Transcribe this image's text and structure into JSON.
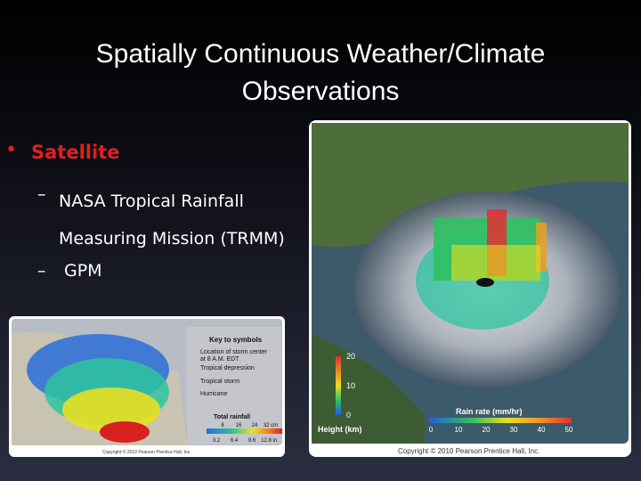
{
  "slide": {
    "title": "Spatially Continuous Weather/Climate Observations",
    "bullet": "Satellite",
    "sub_bullets": [
      "NASA Tropical  Rainfall Measuring Mission (TRMM)",
      "GPM"
    ],
    "left_image": {
      "key_title": "Key to symbols",
      "key_items": [
        "Location of storm center",
        "at 8 A.M. EDT",
        "Tropical depression",
        "Tropical storm",
        "Hurricane"
      ],
      "legend_title": "Total rainfall",
      "cm_labels": [
        "8",
        "16",
        "24",
        "32 cm"
      ],
      "in_labels": [
        "3.2",
        "6.4",
        "9.6",
        "12.8 in."
      ],
      "copyright": "Copyright © 2010 Pearson Prentice Hall, Inc."
    },
    "right_image": {
      "height_labels": [
        "20",
        "10",
        "0"
      ],
      "height_title": "Height (km)",
      "rain_title": "Rain rate (mm/hr)",
      "rain_labels": [
        "0",
        "10",
        "20",
        "30",
        "40",
        "50"
      ],
      "copyright": "Copyright © 2010 Pearson Prentice Hall, Inc."
    }
  }
}
